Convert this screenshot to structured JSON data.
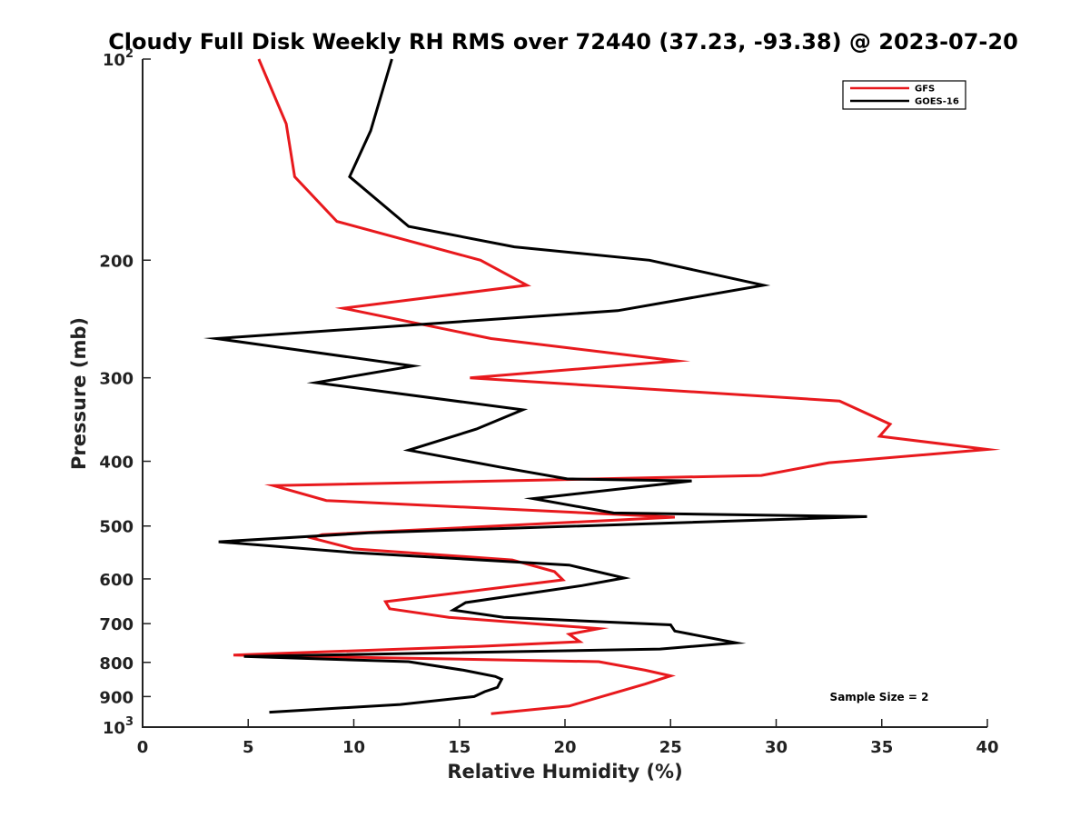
{
  "chart_data": {
    "type": "line",
    "title": "Cloudy Full Disk Weekly RH RMS over 72440 (37.23, -93.38) @ 2023-07-20",
    "xlabel": "Relative Humidity (%)",
    "ylabel": "Pressure (mb)",
    "xlim": [
      0,
      40
    ],
    "ylim": [
      100,
      1000
    ],
    "yscale": "log",
    "y_reversed": true,
    "grid": false,
    "legend_position": "top-right",
    "x_ticks": [
      0,
      5,
      10,
      15,
      20,
      25,
      30,
      35,
      40
    ],
    "x_tick_labels": [
      "0",
      "5",
      "10",
      "15",
      "20",
      "25",
      "30",
      "35",
      "40"
    ],
    "y_ticks": [
      100,
      200,
      300,
      400,
      500,
      600,
      700,
      800,
      900,
      1000
    ],
    "y_tick_labels": [
      {
        "base": "10",
        "exp": "2"
      },
      {
        "base": "200",
        "exp": ""
      },
      {
        "base": "300",
        "exp": ""
      },
      {
        "base": "400",
        "exp": ""
      },
      {
        "base": "500",
        "exp": ""
      },
      {
        "base": "600",
        "exp": ""
      },
      {
        "base": "700",
        "exp": ""
      },
      {
        "base": "800",
        "exp": ""
      },
      {
        "base": "900",
        "exp": ""
      },
      {
        "base": "10",
        "exp": "3"
      }
    ],
    "annotation": "Sample Size = 2",
    "series": [
      {
        "name": "GFS",
        "color": "#e8191d",
        "points": [
          [
            5.5,
            100
          ],
          [
            6.8,
            125
          ],
          [
            7.2,
            150
          ],
          [
            9.2,
            175
          ],
          [
            16.0,
            200
          ],
          [
            18.2,
            218
          ],
          [
            9.5,
            236
          ],
          [
            16.5,
            262
          ],
          [
            25.3,
            283
          ],
          [
            15.5,
            300
          ],
          [
            33.0,
            325
          ],
          [
            35.4,
            352
          ],
          [
            34.9,
            367
          ],
          [
            40.0,
            384
          ],
          [
            32.5,
            402
          ],
          [
            29.3,
            420
          ],
          [
            6.2,
            435
          ],
          [
            8.7,
            458
          ],
          [
            25.2,
            485
          ],
          [
            8.5,
            515
          ],
          [
            8.0,
            521
          ],
          [
            10.0,
            541
          ],
          [
            17.5,
            562
          ],
          [
            19.5,
            585
          ],
          [
            19.9,
            602
          ],
          [
            11.5,
            649
          ],
          [
            11.7,
            665
          ],
          [
            14.5,
            685
          ],
          [
            21.6,
            712
          ],
          [
            20.2,
            726
          ],
          [
            20.7,
            745
          ],
          [
            16.0,
            757
          ],
          [
            4.3,
            780
          ],
          [
            21.6,
            798
          ],
          [
            23.8,
            822
          ],
          [
            25.0,
            838
          ],
          [
            23.8,
            862
          ],
          [
            20.2,
            930
          ],
          [
            16.5,
            955
          ]
        ]
      },
      {
        "name": "GOES-16",
        "color": "#000000",
        "points": [
          [
            11.8,
            100
          ],
          [
            10.8,
            128
          ],
          [
            9.8,
            150
          ],
          [
            12.6,
            178
          ],
          [
            17.6,
            191
          ],
          [
            24.0,
            200
          ],
          [
            29.4,
            218
          ],
          [
            22.5,
            238
          ],
          [
            3.5,
            262
          ],
          [
            12.8,
            288
          ],
          [
            8.2,
            305
          ],
          [
            18.0,
            335
          ],
          [
            15.8,
            358
          ],
          [
            12.6,
            385
          ],
          [
            16.9,
            408
          ],
          [
            20.1,
            425
          ],
          [
            26.0,
            428
          ],
          [
            18.5,
            455
          ],
          [
            22.3,
            478
          ],
          [
            34.3,
            484
          ],
          [
            10.7,
            512
          ],
          [
            3.6,
            528
          ],
          [
            10.0,
            548
          ],
          [
            20.2,
            572
          ],
          [
            22.8,
            598
          ],
          [
            20.8,
            614
          ],
          [
            15.3,
            651
          ],
          [
            14.7,
            668
          ],
          [
            17.1,
            685
          ],
          [
            25.0,
            703
          ],
          [
            25.2,
            718
          ],
          [
            28.1,
            748
          ],
          [
            24.5,
            764
          ],
          [
            4.8,
            784
          ],
          [
            12.6,
            798
          ],
          [
            15.2,
            822
          ],
          [
            16.7,
            840
          ],
          [
            17.0,
            848
          ],
          [
            16.8,
            872
          ],
          [
            16.2,
            885
          ],
          [
            15.7,
            900
          ],
          [
            12.2,
            925
          ],
          [
            6.0,
            950
          ]
        ]
      }
    ]
  }
}
